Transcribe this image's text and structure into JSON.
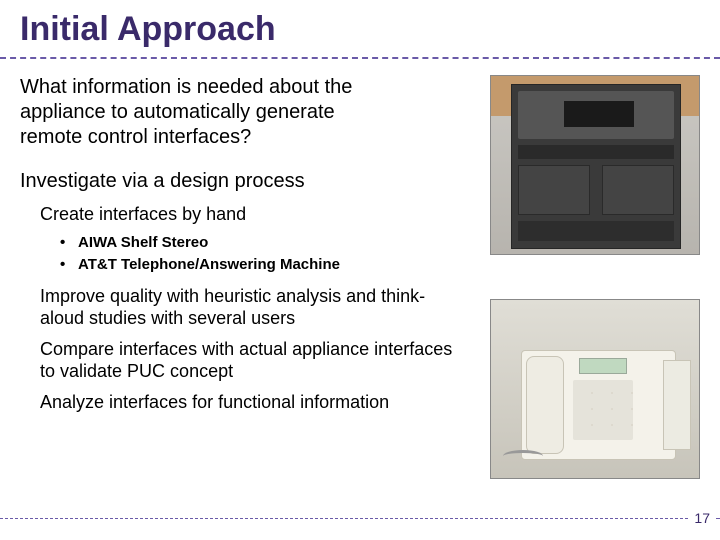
{
  "colors": {
    "title": "#3a2a6a",
    "accent_dash": "#6a5aa8",
    "text": "#000000",
    "background": "#ffffff"
  },
  "typography": {
    "title_fontsize_pt": 26,
    "title_weight": "bold",
    "body_fontsize_pt": 15,
    "sub_fontsize_pt": 14,
    "bullet_fontsize_pt": 11,
    "font_family": "Arial"
  },
  "title": "Initial Approach",
  "question": "What information is needed about the appliance to automatically generate remote control interfaces?",
  "subheading": "Investigate via a design process",
  "design_steps": {
    "step1": "Create interfaces by hand",
    "step1_bullets": [
      "AIWA Shelf Stereo",
      "AT&T Telephone/Answering Machine"
    ],
    "step2": "Improve quality with heuristic analysis and think-aloud studies with several users",
    "step3": "Compare interfaces with actual appliance interfaces to validate PUC concept",
    "step4": "Analyze interfaces for functional information"
  },
  "images": {
    "top_caption": "shelf-stereo-photo",
    "bottom_caption": "telephone-answering-machine-photo"
  },
  "slide_number": "17"
}
